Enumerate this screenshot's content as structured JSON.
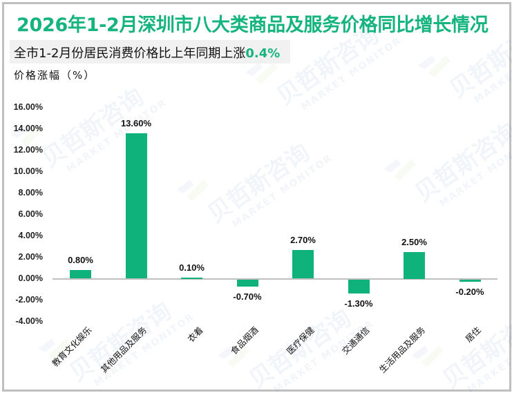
{
  "title": "2026年1-2月深圳市八大类商品及服务价格同比增长情况",
  "subtitle": {
    "text": "全市1-2月份居民消费价格比上年同期上涨",
    "highlight": "0.4%"
  },
  "y_axis_label": "价格涨幅（%）",
  "watermark": {
    "cn": "贝哲斯咨询",
    "en": "MARKET MONITOR"
  },
  "colors": {
    "accent": "#15b47e",
    "bar": "#10b27c",
    "axis": "#bfbfbf",
    "subtitle_bg": "#f1f1f1"
  },
  "y_ticks": [
    "16.00%",
    "14.00%",
    "12.00%",
    "10.00%",
    "8.00%",
    "6.00%",
    "4.00%",
    "2.00%",
    "0.00%",
    "-2.00%",
    "-4.00%"
  ],
  "chart_data": {
    "type": "bar",
    "title": "2026年1-2月深圳市八大类商品及服务价格同比增长情况",
    "subtitle": "全市1-2月份居民消费价格比上年同期上涨0.4%",
    "xlabel": "",
    "ylabel": "价格涨幅（%）",
    "categories": [
      "教育文化娱乐",
      "其他用品及服务",
      "衣着",
      "食品烟酒",
      "医疗保健",
      "交通通信",
      "生活用品及服务",
      "居住"
    ],
    "values": [
      0.8,
      13.6,
      0.1,
      -0.7,
      2.7,
      -1.3,
      2.5,
      -0.2
    ],
    "value_labels": [
      "0.80%",
      "13.60%",
      "0.10%",
      "-0.70%",
      "2.70%",
      "-1.30%",
      "2.50%",
      "-0.20%"
    ],
    "ylim": [
      -4,
      16
    ],
    "ytick_step": 2,
    "grid": false,
    "legend": "none"
  }
}
